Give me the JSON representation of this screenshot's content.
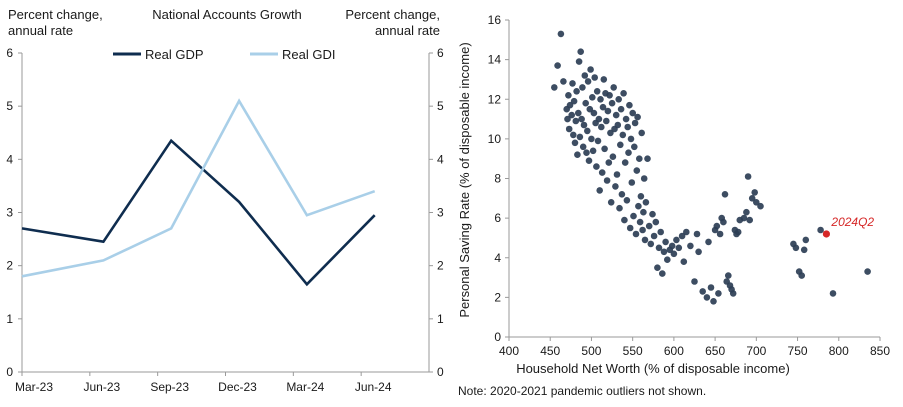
{
  "chart_data": [
    {
      "type": "line",
      "title": "National Accounts Growth",
      "left_axis_label": [
        "Percent change,",
        "annual rate"
      ],
      "right_axis_label": [
        "Percent change,",
        "annual rate"
      ],
      "categories": [
        "Mar-23",
        "Jun-23",
        "Sep-23",
        "Dec-23",
        "Mar-24",
        "Jun-24"
      ],
      "ylim": [
        0,
        6
      ],
      "yticks": [
        0,
        1,
        2,
        3,
        4,
        5,
        6
      ],
      "grid": false,
      "legend_position": "top-center",
      "series": [
        {
          "name": "Real GDP",
          "color": "#0f2d4f",
          "values": [
            2.7,
            2.45,
            4.35,
            3.2,
            1.65,
            2.95
          ]
        },
        {
          "name": "Real GDI",
          "color": "#a9cfe8",
          "values": [
            1.8,
            2.1,
            2.7,
            5.1,
            2.95,
            3.4
          ]
        }
      ]
    },
    {
      "type": "scatter",
      "xlabel": "Household Net Worth (% of disposable income)",
      "ylabel": "Personal Saving Rate (% of disposable income)",
      "xlim": [
        400,
        850
      ],
      "ylim": [
        0,
        16
      ],
      "xticks": [
        400,
        450,
        500,
        550,
        600,
        650,
        700,
        750,
        800,
        850
      ],
      "yticks": [
        0,
        2,
        4,
        6,
        8,
        10,
        12,
        14,
        16
      ],
      "point_color": "#2c3e55",
      "highlight_color": "#d62828",
      "highlight": {
        "label": "2024Q2",
        "x": 785,
        "y": 5.2
      },
      "note": "Note: 2020-2021 pandemic outliers not shown.",
      "points": [
        [
          455,
          12.6
        ],
        [
          459,
          13.7
        ],
        [
          463,
          15.3
        ],
        [
          466,
          12.9
        ],
        [
          470,
          11.5
        ],
        [
          471,
          11.0
        ],
        [
          472,
          12.2
        ],
        [
          473,
          10.5
        ],
        [
          474,
          11.7
        ],
        [
          476,
          11.2
        ],
        [
          477,
          12.8
        ],
        [
          478,
          10.2
        ],
        [
          479,
          11.9
        ],
        [
          480,
          9.8
        ],
        [
          481,
          10.9
        ],
        [
          482,
          12.4
        ],
        [
          483,
          9.2
        ],
        [
          484,
          11.3
        ],
        [
          485,
          13.9
        ],
        [
          486,
          10.1
        ],
        [
          487,
          14.4
        ],
        [
          488,
          11.0
        ],
        [
          489,
          12.6
        ],
        [
          490,
          9.6
        ],
        [
          491,
          10.7
        ],
        [
          492,
          13.2
        ],
        [
          493,
          11.8
        ],
        [
          494,
          9.3
        ],
        [
          495,
          10.4
        ],
        [
          496,
          12.9
        ],
        [
          497,
          8.9
        ],
        [
          498,
          11.5
        ],
        [
          499,
          13.5
        ],
        [
          500,
          10.0
        ],
        [
          501,
          12.1
        ],
        [
          502,
          9.4
        ],
        [
          503,
          11.3
        ],
        [
          504,
          13.1
        ],
        [
          505,
          10.8
        ],
        [
          506,
          8.6
        ],
        [
          507,
          12.4
        ],
        [
          508,
          9.9
        ],
        [
          509,
          11.0
        ],
        [
          510,
          7.4
        ],
        [
          511,
          12.0
        ],
        [
          512,
          10.6
        ],
        [
          513,
          8.3
        ],
        [
          514,
          11.6
        ],
        [
          515,
          13.0
        ],
        [
          516,
          9.5
        ],
        [
          517,
          12.3
        ],
        [
          518,
          10.9
        ],
        [
          519,
          7.9
        ],
        [
          520,
          11.4
        ],
        [
          521,
          8.8
        ],
        [
          522,
          12.2
        ],
        [
          523,
          10.3
        ],
        [
          524,
          6.8
        ],
        [
          525,
          11.8
        ],
        [
          526,
          9.1
        ],
        [
          527,
          12.6
        ],
        [
          528,
          10.5
        ],
        [
          529,
          7.6
        ],
        [
          530,
          11.2
        ],
        [
          531,
          8.2
        ],
        [
          532,
          10.7
        ],
        [
          533,
          12.0
        ],
        [
          534,
          6.5
        ],
        [
          535,
          9.7
        ],
        [
          536,
          11.5
        ],
        [
          537,
          7.2
        ],
        [
          538,
          10.2
        ],
        [
          539,
          12.3
        ],
        [
          540,
          5.9
        ],
        [
          541,
          8.8
        ],
        [
          542,
          11.0
        ],
        [
          543,
          6.9
        ],
        [
          544,
          10.6
        ],
        [
          545,
          9.3
        ],
        [
          546,
          11.7
        ],
        [
          547,
          5.5
        ],
        [
          548,
          10.0
        ],
        [
          549,
          7.8
        ],
        [
          550,
          11.3
        ],
        [
          551,
          6.1
        ],
        [
          552,
          9.6
        ],
        [
          553,
          10.8
        ],
        [
          554,
          5.2
        ],
        [
          555,
          8.4
        ],
        [
          556,
          11.1
        ],
        [
          557,
          6.6
        ],
        [
          558,
          9.0
        ],
        [
          559,
          5.8
        ],
        [
          560,
          7.1
        ],
        [
          561,
          10.3
        ],
        [
          562,
          5.4
        ],
        [
          563,
          6.3
        ],
        [
          564,
          8.0
        ],
        [
          565,
          4.9
        ],
        [
          566,
          6.8
        ],
        [
          568,
          9.0
        ],
        [
          570,
          5.6
        ],
        [
          572,
          4.7
        ],
        [
          574,
          6.2
        ],
        [
          576,
          5.1
        ],
        [
          578,
          5.8
        ],
        [
          580,
          3.5
        ],
        [
          582,
          4.5
        ],
        [
          584,
          5.3
        ],
        [
          586,
          3.2
        ],
        [
          588,
          4.3
        ],
        [
          590,
          4.8
        ],
        [
          592,
          3.9
        ],
        [
          595,
          4.4
        ],
        [
          598,
          4.6
        ],
        [
          600,
          4.2
        ],
        [
          603,
          4.9
        ],
        [
          606,
          4.5
        ],
        [
          610,
          5.1
        ],
        [
          612,
          3.8
        ],
        [
          615,
          5.3
        ],
        [
          620,
          4.6
        ],
        [
          625,
          2.8
        ],
        [
          628,
          5.2
        ],
        [
          630,
          4.3
        ],
        [
          635,
          2.3
        ],
        [
          640,
          2.0
        ],
        [
          642,
          4.8
        ],
        [
          645,
          2.5
        ],
        [
          648,
          1.8
        ],
        [
          650,
          5.4
        ],
        [
          652,
          5.6
        ],
        [
          654,
          2.2
        ],
        [
          656,
          5.2
        ],
        [
          658,
          6.0
        ],
        [
          660,
          5.8
        ],
        [
          662,
          7.2
        ],
        [
          664,
          2.8
        ],
        [
          666,
          3.1
        ],
        [
          668,
          2.6
        ],
        [
          670,
          2.4
        ],
        [
          672,
          2.2
        ],
        [
          674,
          5.4
        ],
        [
          676,
          5.2
        ],
        [
          678,
          5.3
        ],
        [
          680,
          5.9
        ],
        [
          685,
          6.0
        ],
        [
          688,
          6.3
        ],
        [
          690,
          8.1
        ],
        [
          692,
          5.9
        ],
        [
          695,
          7.0
        ],
        [
          698,
          7.3
        ],
        [
          700,
          6.8
        ],
        [
          705,
          6.6
        ],
        [
          745,
          4.7
        ],
        [
          748,
          4.5
        ],
        [
          752,
          3.3
        ],
        [
          755,
          3.1
        ],
        [
          758,
          4.4
        ],
        [
          760,
          4.9
        ],
        [
          778,
          5.4
        ],
        [
          793,
          2.2
        ],
        [
          835,
          3.3
        ]
      ]
    }
  ]
}
